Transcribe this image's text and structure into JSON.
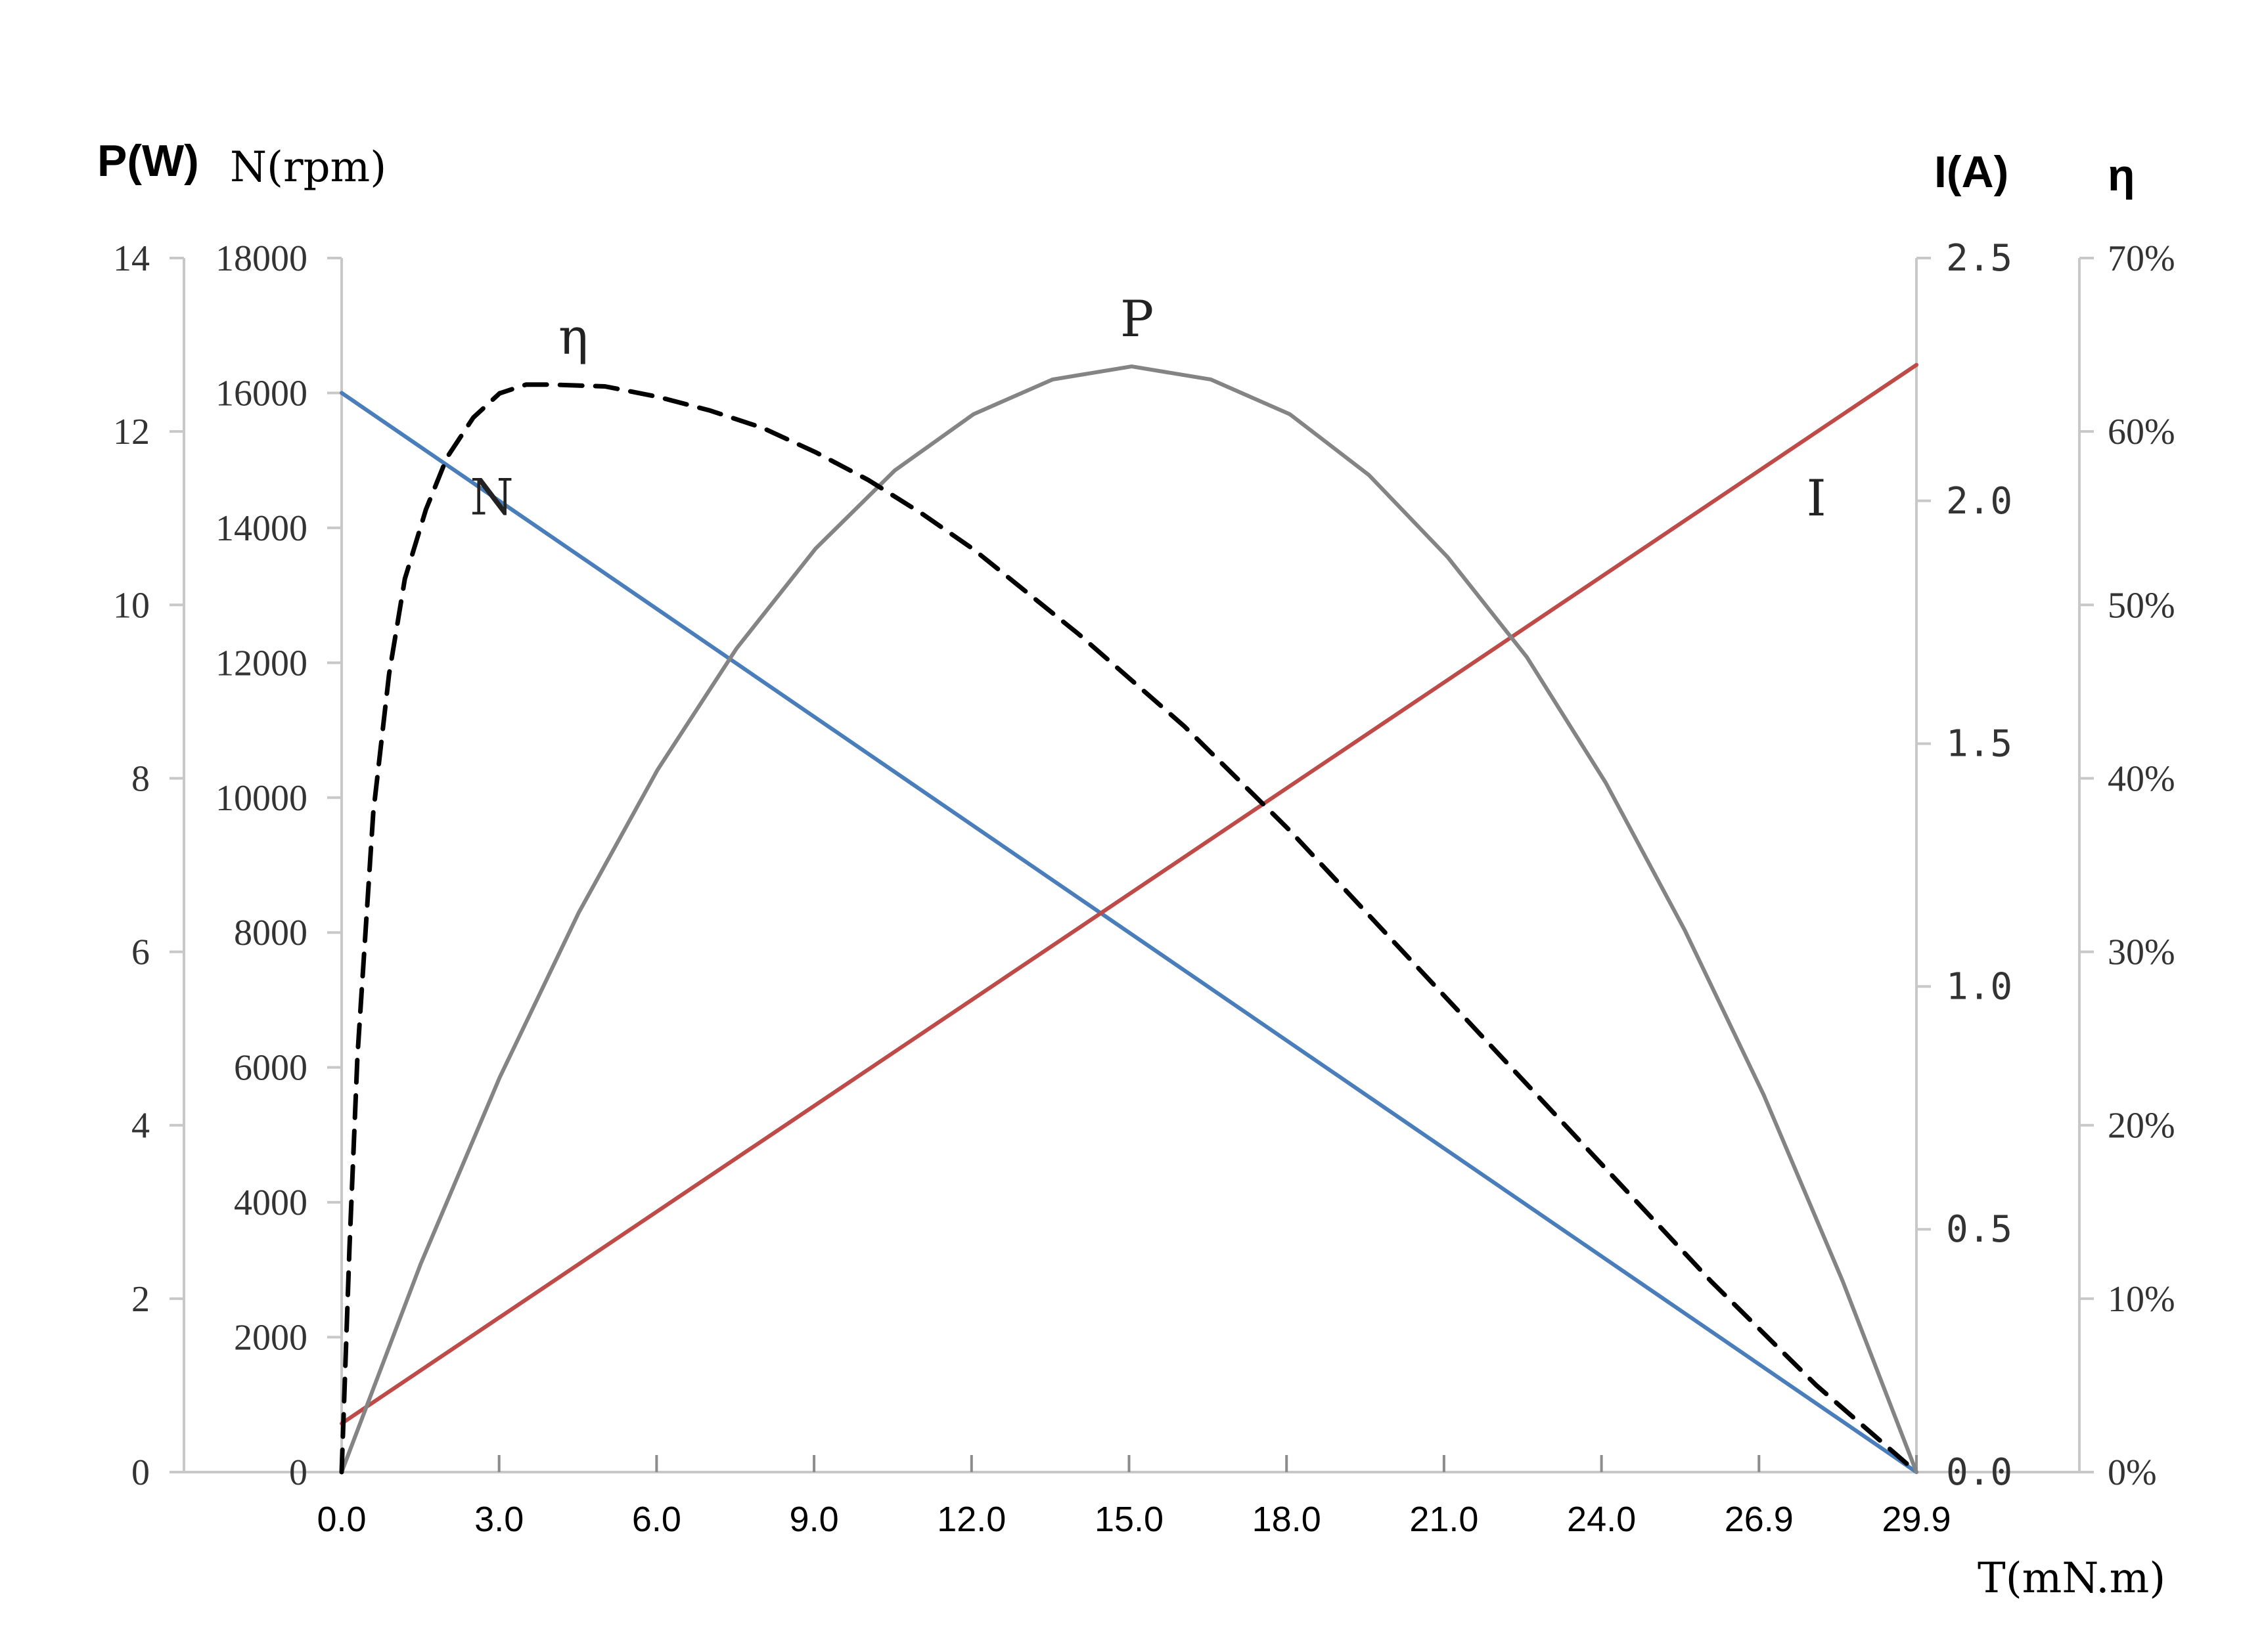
{
  "chart_data": {
    "type": "line",
    "axis_titles": {
      "power": "P(W)",
      "speed": "N(rpm)",
      "current": "I(A)",
      "efficiency": "η",
      "torque": "T(mN.m)"
    },
    "x_ticks": [
      "0.0",
      "3.0",
      "6.0",
      "9.0",
      "12.0",
      "15.0",
      "18.0",
      "21.0",
      "24.0",
      "26.9",
      "29.9"
    ],
    "xlim": [
      0,
      29.9
    ],
    "axes": {
      "power": {
        "ticks": [
          "0",
          "2",
          "4",
          "6",
          "8",
          "10",
          "12",
          "14"
        ],
        "range": [
          0,
          14
        ]
      },
      "speed": {
        "ticks": [
          "0",
          "2000",
          "4000",
          "6000",
          "8000",
          "10000",
          "12000",
          "14000",
          "16000",
          "18000"
        ],
        "range": [
          0,
          18000
        ]
      },
      "current": {
        "ticks": [
          "0.0",
          "0.5",
          "1.0",
          "1.5",
          "2.0",
          "2.5"
        ],
        "range": [
          0,
          2.5
        ]
      },
      "efficiency": {
        "ticks": [
          "0%",
          "10%",
          "20%",
          "30%",
          "40%",
          "50%",
          "60%",
          "70%"
        ],
        "range": [
          0,
          70
        ]
      }
    },
    "series": [
      {
        "name": "N",
        "axis": "speed",
        "color": "#4a7ebb",
        "dash": false,
        "label_at": [
          2.85,
          14200
        ],
        "x": [
          0,
          29.9
        ],
        "y": [
          16000,
          0
        ]
      },
      {
        "name": "I",
        "axis": "current",
        "color": "#be4b48",
        "dash": false,
        "label_at": [
          28.0,
          1.97
        ],
        "x": [
          0,
          29.9
        ],
        "y": [
          0.1,
          2.28
        ]
      },
      {
        "name": "P",
        "axis": "power",
        "color": "#848484",
        "dash": false,
        "label_at": [
          15.1,
          13.1
        ],
        "x": [
          0,
          1.5,
          3.0,
          4.5,
          6.0,
          7.5,
          9.0,
          10.5,
          12.0,
          13.5,
          15.0,
          16.5,
          18.0,
          19.5,
          21.0,
          22.5,
          24.0,
          25.5,
          27.0,
          28.5,
          29.9
        ],
        "y": [
          0,
          2.4,
          4.55,
          6.45,
          8.1,
          9.5,
          10.65,
          11.55,
          12.2,
          12.6,
          12.75,
          12.6,
          12.2,
          11.5,
          10.55,
          9.4,
          7.95,
          6.25,
          4.35,
          2.2,
          0
        ]
      },
      {
        "name": "η",
        "axis": "efficiency",
        "color": "#000000",
        "dash": true,
        "label_at": [
          4.4,
          64.5
        ],
        "x": [
          0,
          0.15,
          0.3,
          0.6,
          0.9,
          1.2,
          1.6,
          2.0,
          2.5,
          3.0,
          3.5,
          4.0,
          5.0,
          6.0,
          7.0,
          8.0,
          9.0,
          10.0,
          11.0,
          12.0,
          14.0,
          16.0,
          18.0,
          20.0,
          22.0,
          24.0,
          26.0,
          28.0,
          29.9
        ],
        "y": [
          0,
          13,
          24,
          38,
          46,
          51.5,
          55.5,
          58.5,
          60.8,
          62.2,
          62.7,
          62.7,
          62.6,
          62.0,
          61.2,
          60.2,
          58.8,
          57.2,
          55.3,
          53.2,
          48.3,
          43.0,
          37.0,
          30.5,
          24.0,
          17.5,
          11.0,
          5.0,
          0
        ]
      }
    ]
  }
}
